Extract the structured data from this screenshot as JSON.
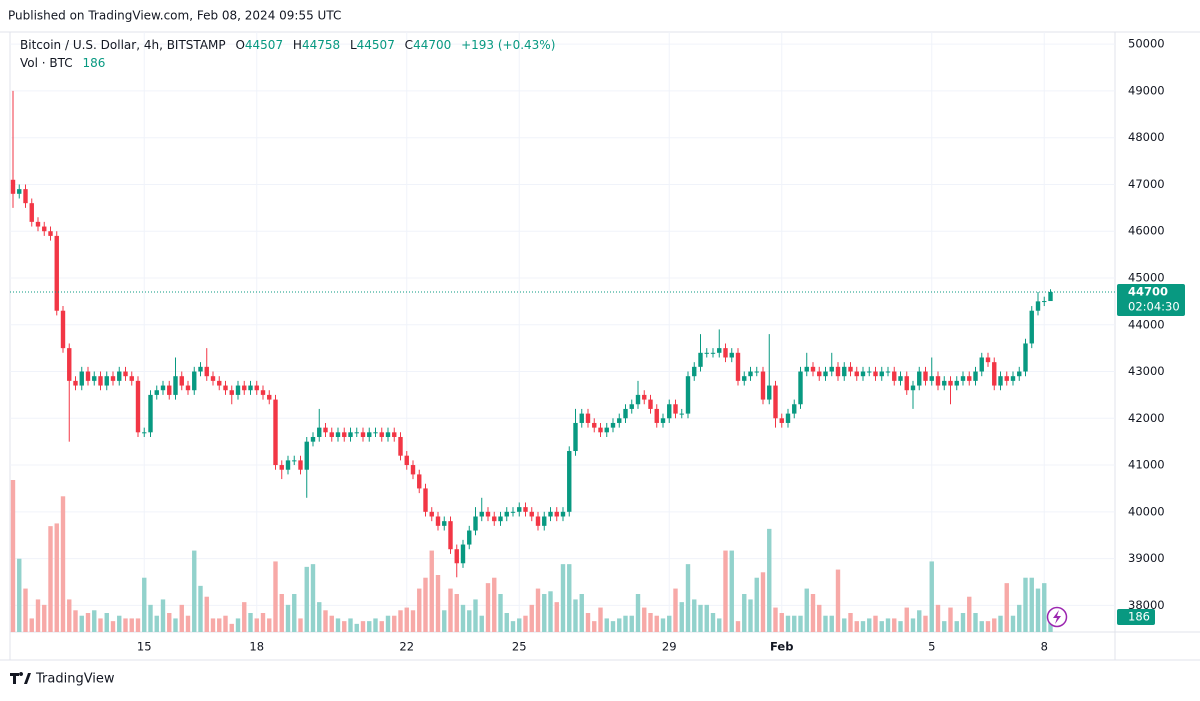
{
  "header": "Published on TradingView.com, Feb 08, 2024 09:55 UTC",
  "footer": "TradingView",
  "chart_data": {
    "type": "candlestick",
    "title": "Bitcoin / U.S. Dollar, 4h, BITSTAMP",
    "ohlc_labels": [
      "O",
      "H",
      "L",
      "C"
    ],
    "change": "+193 (+0.43%)",
    "volume_label": "Vol · BTC",
    "countdown": "02:04:30",
    "up_color": "#089981",
    "down_color": "#f23645",
    "volume_up_color": "#92d2cc",
    "volume_down_color": "#f7a9a7",
    "grid": true,
    "ylim": [
      37430,
      50260
    ],
    "yticks": [
      38000,
      39000,
      40000,
      41000,
      42000,
      43000,
      44000,
      45000,
      46000,
      47000,
      48000,
      49000,
      50000
    ],
    "categories": [
      null,
      null,
      null,
      null,
      null,
      null,
      null,
      null,
      null,
      null,
      null,
      null,
      null,
      null,
      null,
      null,
      null,
      null,
      null,
      null,
      null,
      "15",
      null,
      null,
      null,
      null,
      null,
      null,
      null,
      null,
      null,
      null,
      null,
      null,
      null,
      null,
      null,
      null,
      null,
      "18",
      null,
      null,
      null,
      null,
      null,
      null,
      null,
      null,
      null,
      null,
      null,
      null,
      null,
      null,
      null,
      null,
      null,
      null,
      null,
      null,
      null,
      null,
      null,
      "22",
      null,
      null,
      null,
      null,
      null,
      null,
      null,
      null,
      null,
      null,
      null,
      null,
      null,
      null,
      null,
      null,
      null,
      "25",
      null,
      null,
      null,
      null,
      null,
      null,
      null,
      null,
      null,
      null,
      null,
      null,
      null,
      null,
      null,
      null,
      null,
      null,
      null,
      null,
      null,
      null,
      null,
      "29",
      null,
      null,
      null,
      null,
      null,
      null,
      null,
      null,
      null,
      null,
      null,
      null,
      null,
      null,
      null,
      null,
      null,
      "Feb",
      null,
      null,
      null,
      null,
      null,
      null,
      null,
      null,
      null,
      null,
      null,
      null,
      null,
      null,
      null,
      null,
      null,
      null,
      null,
      null,
      null,
      null,
      null,
      "5",
      null,
      null,
      null,
      null,
      null,
      null,
      null,
      null,
      null,
      null,
      null,
      null,
      null,
      null,
      null,
      null,
      null,
      "8",
      null
    ],
    "open": [
      47100,
      46800,
      46900,
      46600,
      46200,
      46100,
      46000,
      45900,
      44300,
      43500,
      42800,
      42700,
      43000,
      42800,
      42900,
      42700,
      42900,
      42800,
      43000,
      42900,
      42800,
      41700,
      41700,
      42500,
      42600,
      42700,
      42500,
      42900,
      42700,
      42600,
      43000,
      43100,
      42900,
      42800,
      42700,
      42600,
      42500,
      42700,
      42600,
      42700,
      42600,
      42500,
      42400,
      41000,
      40900,
      41100,
      41100,
      40900,
      41500,
      41600,
      41800,
      41700,
      41600,
      41700,
      41600,
      41700,
      41700,
      41600,
      41700,
      41700,
      41600,
      41700,
      41600,
      41200,
      41000,
      40800,
      40500,
      40000,
      39900,
      39700,
      39800,
      39200,
      38900,
      39300,
      39600,
      39900,
      40000,
      39900,
      39800,
      39900,
      40000,
      40000,
      40100,
      40000,
      39900,
      39700,
      39900,
      40000,
      39900,
      40000,
      41300,
      41900,
      42100,
      41900,
      41800,
      41700,
      41800,
      41900,
      42000,
      42200,
      42300,
      42500,
      42400,
      42200,
      41900,
      42000,
      42300,
      42100,
      42100,
      42900,
      43100,
      43400,
      43400,
      43400,
      43500,
      43300,
      43400,
      42800,
      42900,
      43000,
      43000,
      42400,
      42700,
      42000,
      41900,
      42100,
      42300,
      43000,
      43100,
      43000,
      42900,
      43000,
      43100,
      42900,
      43100,
      43000,
      42900,
      43000,
      43000,
      42900,
      43000,
      43000,
      42800,
      42900,
      42600,
      42700,
      43000,
      42800,
      42900,
      42700,
      42800,
      42700,
      42800,
      42900,
      42800,
      43000,
      43300,
      43200,
      42700,
      42900,
      42800,
      42900,
      43000,
      43600,
      44300,
      44500,
      44507
    ],
    "high": [
      49000,
      47000,
      47000,
      46700,
      46300,
      46200,
      46100,
      46000,
      44400,
      43600,
      42900,
      43100,
      43100,
      43000,
      43000,
      43000,
      43000,
      43100,
      43100,
      43000,
      42900,
      41800,
      42600,
      42700,
      42800,
      42800,
      43300,
      43000,
      42800,
      43100,
      43200,
      43500,
      43000,
      42900,
      42800,
      42700,
      42800,
      42800,
      42800,
      42800,
      42700,
      42600,
      42500,
      41100,
      41200,
      41200,
      41200,
      41600,
      41700,
      42200,
      41900,
      41800,
      41800,
      41800,
      41800,
      41800,
      41800,
      41800,
      41800,
      41800,
      41800,
      41800,
      41700,
      41300,
      41100,
      40900,
      40600,
      40100,
      40000,
      39900,
      39900,
      39300,
      39400,
      39700,
      40100,
      40300,
      40100,
      40000,
      40000,
      40100,
      40100,
      40200,
      40200,
      40100,
      40000,
      40000,
      40100,
      40100,
      40100,
      41400,
      42200,
      42200,
      42200,
      42000,
      41900,
      41900,
      42000,
      42100,
      42300,
      42400,
      42800,
      42600,
      42500,
      42300,
      42100,
      42400,
      42400,
      42200,
      43000,
      43200,
      43800,
      43500,
      43500,
      43900,
      43600,
      43500,
      43500,
      43000,
      43100,
      43100,
      43100,
      43800,
      42800,
      42100,
      42200,
      42400,
      43100,
      43400,
      43200,
      43100,
      43100,
      43400,
      43200,
      43200,
      43200,
      43100,
      43100,
      43100,
      43100,
      43100,
      43100,
      43100,
      43000,
      43000,
      42800,
      43100,
      43100,
      43300,
      43000,
      42900,
      42900,
      42900,
      43000,
      43000,
      43100,
      43400,
      43400,
      43300,
      43000,
      43000,
      43000,
      43100,
      43700,
      44400,
      44700,
      44600,
      44758
    ],
    "low": [
      46500,
      46700,
      46500,
      46100,
      46000,
      45900,
      45800,
      44200,
      43400,
      41500,
      42600,
      42600,
      42700,
      42700,
      42600,
      42600,
      42700,
      42700,
      42800,
      42700,
      41600,
      41600,
      41600,
      42400,
      42500,
      42400,
      42400,
      42600,
      42500,
      42500,
      42900,
      42800,
      42700,
      42600,
      42500,
      42300,
      42400,
      42500,
      42500,
      42500,
      42400,
      42300,
      40900,
      40700,
      40800,
      41000,
      40800,
      40300,
      41400,
      41500,
      41600,
      41500,
      41500,
      41500,
      41500,
      41600,
      41500,
      41500,
      41600,
      41500,
      41500,
      41500,
      41100,
      40900,
      40700,
      40400,
      39900,
      39800,
      39600,
      39600,
      39100,
      38600,
      38800,
      39200,
      39500,
      39800,
      39800,
      39700,
      39700,
      39800,
      39900,
      39900,
      39900,
      39800,
      39600,
      39600,
      39800,
      39800,
      39800,
      39900,
      41200,
      41800,
      41800,
      41700,
      41600,
      41600,
      41700,
      41800,
      41900,
      42100,
      42200,
      42300,
      42100,
      41800,
      41800,
      41900,
      42000,
      42000,
      42000,
      42800,
      43000,
      43300,
      43300,
      43300,
      43200,
      43200,
      42700,
      42700,
      42800,
      42900,
      42300,
      42300,
      41800,
      41800,
      41800,
      42000,
      42200,
      42900,
      42900,
      42800,
      42800,
      42900,
      42800,
      42800,
      42900,
      42800,
      42800,
      42900,
      42800,
      42800,
      42900,
      42700,
      42700,
      42500,
      42200,
      42600,
      42700,
      42700,
      42600,
      42600,
      42300,
      42600,
      42700,
      42700,
      42700,
      42900,
      43100,
      42600,
      42600,
      42700,
      42700,
      42800,
      42900,
      43500,
      44200,
      44400,
      44507
    ],
    "close": [
      46800,
      46900,
      46600,
      46200,
      46100,
      46000,
      45900,
      44300,
      43500,
      42800,
      42700,
      43000,
      42800,
      42900,
      42700,
      42900,
      42800,
      43000,
      42900,
      42800,
      41700,
      41700,
      42500,
      42600,
      42700,
      42500,
      42900,
      42700,
      42600,
      43000,
      43100,
      42900,
      42800,
      42700,
      42600,
      42500,
      42700,
      42600,
      42700,
      42600,
      42500,
      42400,
      41000,
      40900,
      41100,
      41100,
      40900,
      41500,
      41600,
      41800,
      41700,
      41600,
      41700,
      41600,
      41700,
      41700,
      41600,
      41700,
      41700,
      41600,
      41700,
      41600,
      41200,
      41000,
      40800,
      40500,
      40000,
      39900,
      39700,
      39800,
      39200,
      38900,
      39300,
      39600,
      39900,
      40000,
      39900,
      39800,
      39900,
      40000,
      40000,
      40100,
      40000,
      39900,
      39700,
      39900,
      40000,
      39900,
      40000,
      41300,
      41900,
      42100,
      41900,
      41800,
      41700,
      41800,
      41900,
      42000,
      42200,
      42300,
      42500,
      42400,
      42200,
      41900,
      42000,
      42300,
      42100,
      42100,
      42900,
      43100,
      43400,
      43400,
      43400,
      43500,
      43300,
      43400,
      42800,
      42900,
      43000,
      43000,
      42400,
      42700,
      42000,
      41900,
      42100,
      42300,
      43000,
      43100,
      43000,
      42900,
      43000,
      43100,
      42900,
      43100,
      43000,
      42900,
      43000,
      43000,
      42900,
      43000,
      43000,
      42800,
      42900,
      42600,
      42700,
      43000,
      42800,
      42900,
      42700,
      42800,
      42700,
      42800,
      42900,
      42800,
      43000,
      43300,
      43200,
      42700,
      42900,
      42800,
      42900,
      43000,
      43600,
      44300,
      44500,
      44507,
      44700
    ],
    "volume": [
      2800,
      1350,
      800,
      250,
      600,
      500,
      1950,
      2000,
      2500,
      600,
      400,
      300,
      350,
      400,
      250,
      350,
      200,
      300,
      250,
      250,
      250,
      1000,
      500,
      300,
      600,
      350,
      250,
      500,
      300,
      1500,
      850,
      650,
      250,
      250,
      300,
      150,
      250,
      550,
      350,
      250,
      350,
      250,
      1300,
      700,
      500,
      700,
      250,
      1200,
      1250,
      550,
      400,
      300,
      250,
      200,
      250,
      150,
      200,
      200,
      250,
      200,
      300,
      300,
      400,
      450,
      400,
      800,
      1000,
      1500,
      1050,
      400,
      800,
      700,
      500,
      400,
      600,
      300,
      900,
      1000,
      700,
      350,
      200,
      250,
      300,
      500,
      800,
      700,
      750,
      550,
      1250,
      1250,
      600,
      700,
      350,
      200,
      450,
      250,
      200,
      250,
      300,
      300,
      700,
      450,
      350,
      300,
      250,
      300,
      800,
      550,
      1250,
      600,
      500,
      500,
      350,
      250,
      1500,
      1500,
      200,
      700,
      600,
      1000,
      1100,
      1900,
      450,
      350,
      300,
      300,
      300,
      800,
      700,
      500,
      300,
      300,
      1150,
      250,
      350,
      200,
      200,
      250,
      300,
      200,
      250,
      250,
      200,
      450,
      250,
      400,
      300,
      1300,
      500,
      200,
      450,
      200,
      350,
      650,
      350,
      200,
      200,
      250,
      300,
      900,
      300,
      500,
      1000,
      1000,
      800,
      900,
      186
    ]
  }
}
